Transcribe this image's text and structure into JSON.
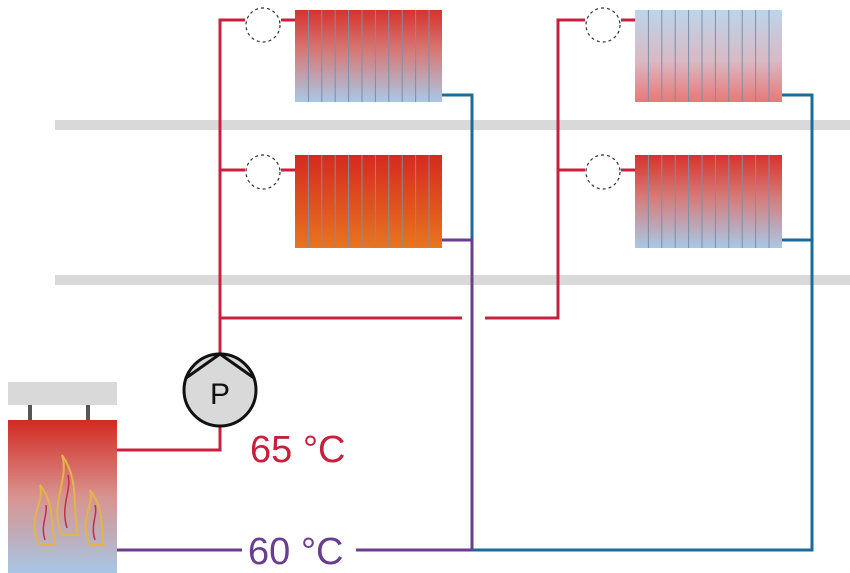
{
  "pump": {
    "label": "P"
  },
  "supply_temperature": "65 °C",
  "return_temperature": "60 °C"
}
